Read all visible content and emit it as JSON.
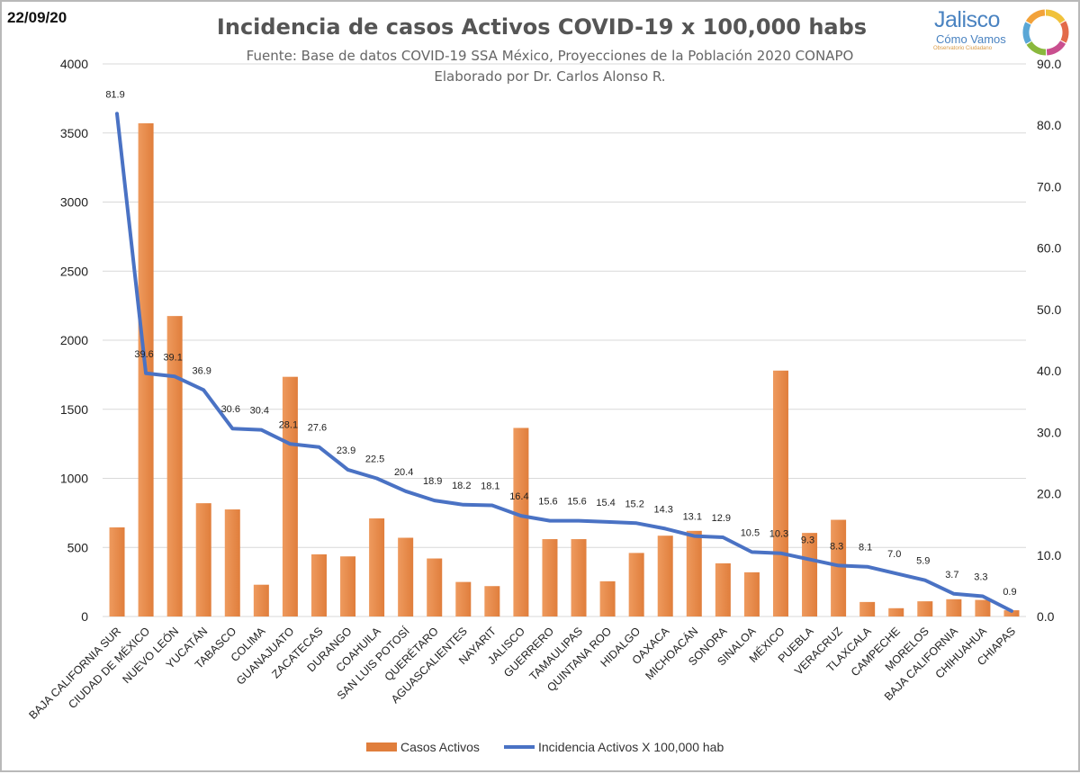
{
  "header": {
    "date": "22/09/20",
    "title": "Incidencia de casos Activos COVID-19 x 100,000 habs",
    "subtitle1": "Fuente: Base de datos COVID-19 SSA México, Proyecciones de la Población 2020 CONAPO",
    "subtitle2": "Elaborado por Dr. Carlos Alonso R."
  },
  "logo": {
    "name": "Jalisco",
    "tagline": "Cómo Vamos",
    "sub": "Observatorio Ciudadano",
    "ring_colors": [
      "#f0c23b",
      "#e36b4a",
      "#c94f8f",
      "#8ab83d",
      "#5aa7d6",
      "#f2a23a"
    ]
  },
  "colors": {
    "bar": "#e07e3c",
    "bar_light": "#ee9a5e",
    "line": "#4a72c4",
    "grid": "#d9d9d9"
  },
  "chart_data": {
    "type": "bar+line",
    "title": "Incidencia de casos Activos COVID-19 x 100,000 habs",
    "categories": [
      "BAJA CALIFORNIA SUR",
      "CIUDAD DE MÉXICO",
      "NUEVO LEÓN",
      "YUCATÁN",
      "TABASCO",
      "COLIMA",
      "GUANAJUATO",
      "ZACATECAS",
      "DURANGO",
      "COAHUILA",
      "SAN LUIS POTOSÍ",
      "QUERÉTARO",
      "AGUASCALIENTES",
      "NAYARIT",
      "JALISCO",
      "GUERRERO",
      "TAMAULIPAS",
      "QUINTANA ROO",
      "HIDALGO",
      "OAXACA",
      "MICHOACÁN",
      "SONORA",
      "SINALOA",
      "MÉXICO",
      "PUEBLA",
      "VERACRUZ",
      "TLAXCALA",
      "CAMPECHE",
      "MORELOS",
      "BAJA CALIFORNIA",
      "CHIHUAHUA",
      "CHIAPAS"
    ],
    "series": [
      {
        "name": "Casos Activos",
        "type": "bar",
        "axis": "left",
        "values": [
          645,
          3570,
          2175,
          820,
          775,
          230,
          1735,
          450,
          435,
          710,
          570,
          420,
          250,
          220,
          1365,
          560,
          560,
          255,
          460,
          585,
          620,
          385,
          320,
          1780,
          605,
          700,
          105,
          60,
          110,
          125,
          120,
          45
        ]
      },
      {
        "name": "Incidencia Activos X 100,000 hab",
        "type": "line",
        "axis": "right",
        "values": [
          81.9,
          39.6,
          39.1,
          36.9,
          30.6,
          30.4,
          28.1,
          27.6,
          23.9,
          22.5,
          20.4,
          18.9,
          18.2,
          18.1,
          16.4,
          15.6,
          15.6,
          15.4,
          15.2,
          14.3,
          13.1,
          12.9,
          10.5,
          10.3,
          9.3,
          8.3,
          8.1,
          7.0,
          5.9,
          3.7,
          3.3,
          0.9
        ],
        "labels": [
          "81.9",
          "39.6",
          "39.1",
          "36.9",
          "30.6",
          "30.4",
          "28.1",
          "27.6",
          "23.9",
          "22.5",
          "20.4",
          "18.9",
          "18.2",
          "18.1",
          "16.4",
          "15.6",
          "15.6",
          "15.4",
          "15.2",
          "14.3",
          "13.1",
          "12.9",
          "10.5",
          "10.3",
          "9.3",
          "8.3",
          "8.1",
          "7.0",
          "5.9",
          "3.7",
          "3.3",
          "0.9"
        ]
      }
    ],
    "ylim_left": [
      0,
      4000
    ],
    "yticks_left": [
      "0",
      "500",
      "1000",
      "1500",
      "2000",
      "2500",
      "3000",
      "3500",
      "4000"
    ],
    "ylim_right": [
      0,
      90
    ],
    "yticks_right": [
      "0.0",
      "10.0",
      "20.0",
      "30.0",
      "40.0",
      "50.0",
      "60.0",
      "70.0",
      "80.0",
      "90.0"
    ],
    "grid": true,
    "legend_position": "bottom"
  }
}
